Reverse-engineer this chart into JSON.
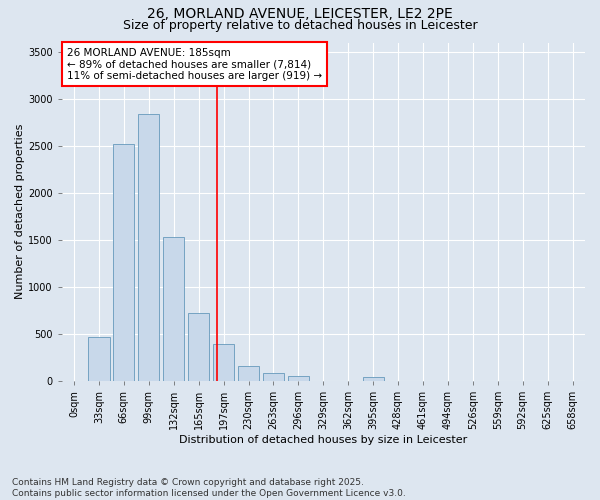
{
  "title_line1": "26, MORLAND AVENUE, LEICESTER, LE2 2PE",
  "title_line2": "Size of property relative to detached houses in Leicester",
  "xlabel": "Distribution of detached houses by size in Leicester",
  "ylabel": "Number of detached properties",
  "categories": [
    "0sqm",
    "33sqm",
    "66sqm",
    "99sqm",
    "132sqm",
    "165sqm",
    "197sqm",
    "230sqm",
    "263sqm",
    "296sqm",
    "329sqm",
    "362sqm",
    "395sqm",
    "428sqm",
    "461sqm",
    "494sqm",
    "526sqm",
    "559sqm",
    "592sqm",
    "625sqm",
    "658sqm"
  ],
  "values": [
    0,
    470,
    2520,
    2840,
    1530,
    720,
    390,
    155,
    90,
    50,
    0,
    0,
    45,
    0,
    0,
    0,
    0,
    0,
    0,
    0,
    0
  ],
  "bar_color": "#c8d8ea",
  "bar_edge_color": "#6699bb",
  "ref_line_x": 5.75,
  "ref_line_color": "red",
  "annotation_text": "26 MORLAND AVENUE: 185sqm\n← 89% of detached houses are smaller (7,814)\n11% of semi-detached houses are larger (919) →",
  "annotation_box_color": "white",
  "annotation_box_edge_color": "red",
  "ylim": [
    0,
    3600
  ],
  "yticks": [
    0,
    500,
    1000,
    1500,
    2000,
    2500,
    3000,
    3500
  ],
  "background_color": "#dde6f0",
  "plot_bg_color": "#dde6f0",
  "footer_line1": "Contains HM Land Registry data © Crown copyright and database right 2025.",
  "footer_line2": "Contains public sector information licensed under the Open Government Licence v3.0.",
  "title_fontsize": 10,
  "subtitle_fontsize": 9,
  "axis_label_fontsize": 8,
  "tick_fontsize": 7,
  "annotation_fontsize": 7.5,
  "footer_fontsize": 6.5
}
